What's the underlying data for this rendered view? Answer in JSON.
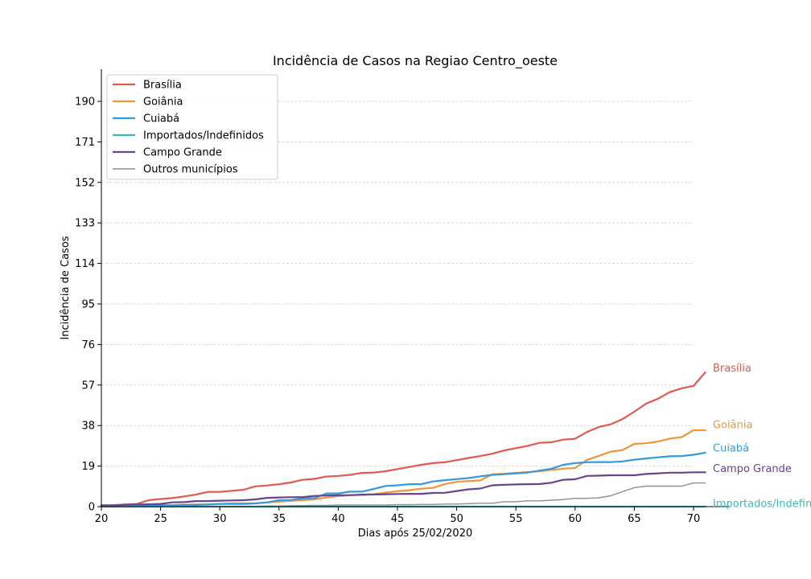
{
  "chart_data": {
    "type": "line",
    "title": "Incidência de Casos na Regiao Centro_oeste",
    "xlabel": "Dias após 25/02/2020",
    "ylabel": "Incidência de Casos",
    "xlim": [
      20,
      72
    ],
    "ylim": [
      0,
      202
    ],
    "xticks": [
      "20",
      "25",
      "30",
      "35",
      "40",
      "45",
      "50",
      "55",
      "60",
      "65",
      "70"
    ],
    "yticks": [
      "0",
      "19",
      "38",
      "57",
      "76",
      "95",
      "114",
      "133",
      "152",
      "171",
      "190"
    ],
    "grid": "horizontal dashed",
    "legend_position": "top-left",
    "x": [
      20,
      21,
      22,
      23,
      24,
      25,
      26,
      27,
      28,
      29,
      30,
      31,
      32,
      33,
      34,
      35,
      36,
      37,
      38,
      39,
      40,
      41,
      42,
      43,
      44,
      45,
      46,
      47,
      48,
      49,
      50,
      51,
      52,
      53,
      54,
      55,
      56,
      57,
      58,
      59,
      60,
      61,
      62,
      63,
      64,
      65,
      66,
      67,
      68,
      69,
      70,
      71
    ],
    "series": [
      {
        "name": "Brasília",
        "color": "#e05a4f",
        "width": 2.2,
        "values": [
          0.5,
          0.6,
          1.0,
          1.3,
          3.0,
          3.6,
          4.0,
          4.8,
          5.7,
          6.9,
          6.9,
          7.4,
          7.9,
          9.5,
          9.9,
          10.5,
          11.3,
          12.6,
          13.0,
          14.1,
          14.4,
          14.9,
          15.8,
          16.0,
          16.6,
          17.6,
          18.6,
          19.6,
          20.4,
          20.8,
          21.8,
          22.8,
          23.7,
          24.8,
          26.3,
          27.4,
          28.5,
          29.9,
          30.2,
          31.4,
          31.8,
          35.0,
          37.3,
          38.6,
          41.0,
          44.5,
          48.3,
          50.6,
          53.7,
          55.5,
          56.6,
          63.0
        ]
      },
      {
        "name": "Goiânia",
        "color": "#f0953a",
        "width": 2.2,
        "values": [
          0.2,
          0.2,
          0.2,
          0.2,
          0.4,
          0.5,
          0.7,
          0.9,
          1.0,
          1.0,
          1.3,
          1.5,
          1.5,
          1.6,
          2.0,
          2.3,
          2.7,
          3.0,
          3.4,
          4.3,
          4.9,
          5.3,
          5.5,
          5.8,
          6.6,
          7.2,
          7.7,
          8.4,
          8.8,
          10.6,
          11.6,
          12.0,
          12.3,
          15.1,
          15.4,
          15.8,
          16.2,
          16.6,
          17.2,
          17.8,
          18.1,
          21.9,
          23.8,
          25.8,
          26.5,
          29.4,
          29.7,
          30.5,
          31.9,
          32.6,
          35.8,
          35.8
        ]
      },
      {
        "name": "Cuiabá",
        "color": "#3399dd",
        "width": 2.2,
        "values": [
          0.3,
          0.3,
          0.3,
          0.4,
          0.5,
          0.6,
          0.6,
          0.8,
          0.8,
          1.0,
          1.3,
          1.3,
          1.3,
          1.5,
          2.0,
          3.0,
          3.1,
          3.8,
          4.0,
          6.2,
          6.2,
          7.0,
          7.0,
          8.3,
          9.7,
          10.0,
          10.5,
          10.5,
          11.8,
          12.4,
          12.9,
          13.4,
          14.2,
          14.9,
          15.2,
          15.6,
          16.0,
          16.9,
          17.8,
          19.6,
          20.4,
          20.8,
          20.9,
          20.9,
          21.2,
          22.0,
          22.6,
          23.1,
          23.6,
          23.7,
          24.3,
          25.3
        ]
      },
      {
        "name": "Importados/Indefinidos",
        "color": "#35bdbd",
        "width": 2.2,
        "values": [
          0,
          0,
          0,
          0,
          0,
          0,
          0,
          0,
          0,
          0,
          0,
          0,
          0,
          0,
          0,
          0,
          0,
          0,
          0,
          0,
          0,
          0,
          0,
          0,
          0,
          0,
          0,
          0,
          0,
          0,
          0,
          0,
          0,
          0,
          0,
          0,
          0,
          0,
          0,
          0,
          0,
          0,
          0,
          0,
          0,
          0,
          0,
          0,
          0,
          0,
          0,
          0.0
        ]
      },
      {
        "name": "Campo Grande",
        "color": "#68448f",
        "width": 2.2,
        "values": [
          0.6,
          0.6,
          0.9,
          1.0,
          1.1,
          1.3,
          2.0,
          2.1,
          2.6,
          2.6,
          2.8,
          2.9,
          3.0,
          3.4,
          4.1,
          4.3,
          4.4,
          4.5,
          5.0,
          5.2,
          5.3,
          5.4,
          5.6,
          5.7,
          5.8,
          5.9,
          6.0,
          6.0,
          6.4,
          6.5,
          7.3,
          8.1,
          8.5,
          10.0,
          10.2,
          10.4,
          10.5,
          10.6,
          11.2,
          12.6,
          12.8,
          14.4,
          14.5,
          14.7,
          14.7,
          14.7,
          15.3,
          15.6,
          15.9,
          15.9,
          16.1,
          16.1
        ]
      },
      {
        "name": "Outros municípios",
        "color": "#8e8e8e",
        "width": 1.4,
        "values": [
          0,
          0,
          0,
          0,
          0,
          0,
          0,
          0,
          0,
          0,
          0,
          0,
          0,
          0.1,
          0.3,
          0.3,
          0.4,
          0.5,
          0.6,
          0.6,
          0.7,
          0.8,
          0.8,
          0.8,
          0.8,
          0.9,
          0.9,
          1.0,
          1.0,
          1.2,
          1.2,
          1.4,
          1.6,
          1.6,
          2.3,
          2.3,
          2.7,
          2.7,
          3.0,
          3.3,
          3.9,
          3.9,
          4.1,
          5.1,
          7.0,
          8.9,
          9.6,
          9.6,
          9.6,
          9.6,
          11.1,
          11.1
        ]
      }
    ],
    "end_labels": [
      {
        "text": "Brasília",
        "color": "#e05a4f",
        "value": 65
      },
      {
        "text": "Goiânia",
        "color": "#f0953a",
        "value": 38.5
      },
      {
        "text": "Cuiabá",
        "color": "#3399dd",
        "value": 27.5
      },
      {
        "text": "Campo Grande",
        "color": "#68448f",
        "value": 18
      },
      {
        "text": "Importados/Indefinidos",
        "color": "#35bdbd",
        "value": 1.5
      }
    ]
  }
}
